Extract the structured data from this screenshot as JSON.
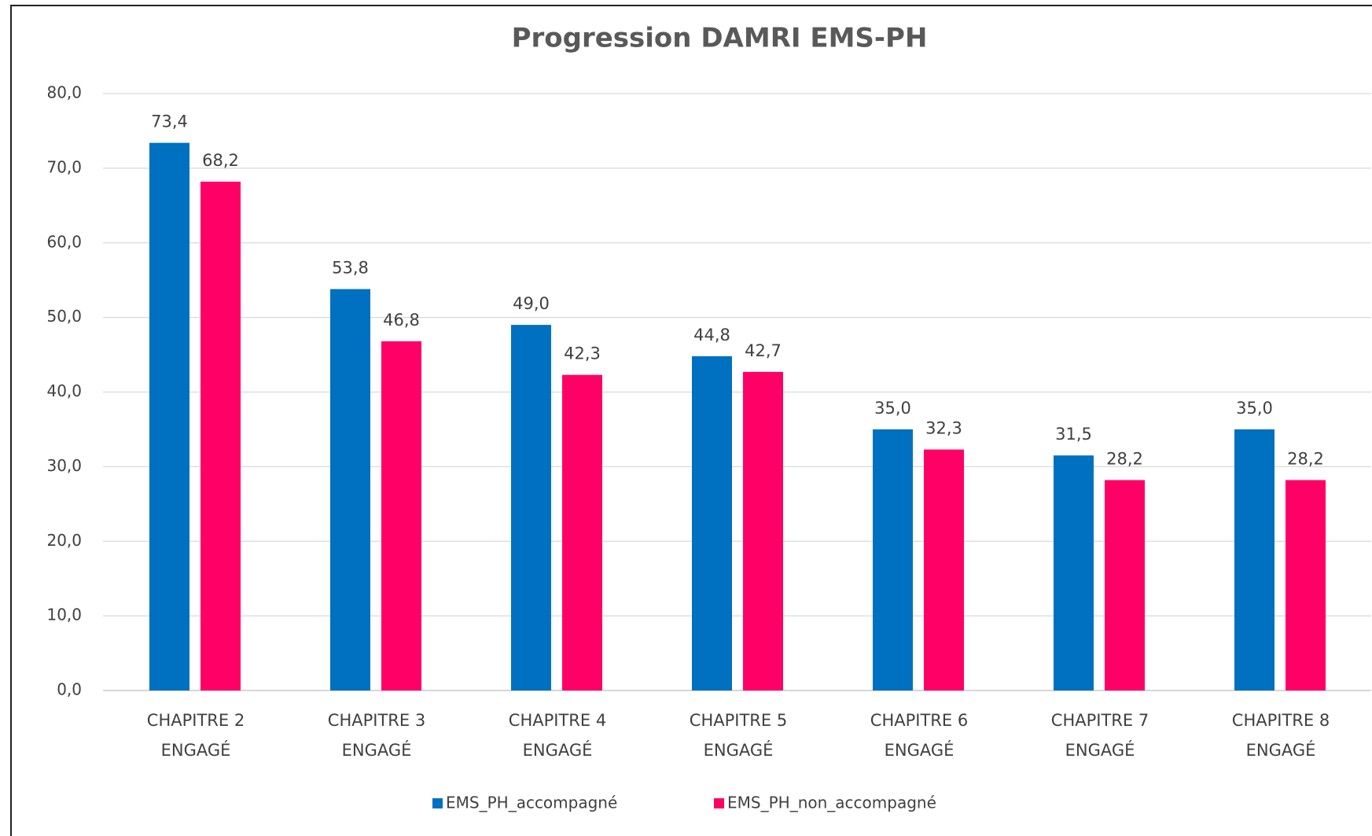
{
  "chart_data": {
    "type": "bar",
    "title": "Progression DAMRI EMS-PH",
    "categories": [
      "CHAPITRE 2 ENGAGÉ",
      "CHAPITRE 3 ENGAGÉ",
      "CHAPITRE 4 ENGAGÉ",
      "CHAPITRE 5 ENGAGÉ",
      "CHAPITRE 6 ENGAGÉ",
      "CHAPITRE 7 ENGAGÉ",
      "CHAPITRE 8 ENGAGÉ"
    ],
    "series": [
      {
        "name": "EMS_PH_accompagné",
        "color": "#0070c0",
        "values": [
          73.4,
          53.8,
          49.0,
          44.8,
          35.0,
          31.5,
          35.0
        ],
        "value_labels": [
          "73,4",
          "53,8",
          "49,0",
          "44,8",
          "35,0",
          "31,5",
          "35,0"
        ]
      },
      {
        "name": "EMS_PH_non_accompagné",
        "color": "#ff0066",
        "values": [
          68.2,
          46.8,
          42.3,
          42.7,
          32.3,
          28.2,
          28.2
        ],
        "value_labels": [
          "68,2",
          "46,8",
          "42,3",
          "42,7",
          "32,3",
          "28,2",
          "28,2"
        ]
      }
    ],
    "ylim": [
      0,
      80
    ],
    "yticks": [
      {
        "value": 0,
        "label": "0,0"
      },
      {
        "value": 10,
        "label": "10,0"
      },
      {
        "value": 20,
        "label": "20,0"
      },
      {
        "value": 30,
        "label": "30,0"
      },
      {
        "value": 40,
        "label": "40,0"
      },
      {
        "value": 50,
        "label": "50,0"
      },
      {
        "value": 60,
        "label": "60,0"
      },
      {
        "value": 70,
        "label": "70,0"
      },
      {
        "value": 80,
        "label": "80,0"
      }
    ],
    "grid": true,
    "legend": "bottom"
  }
}
